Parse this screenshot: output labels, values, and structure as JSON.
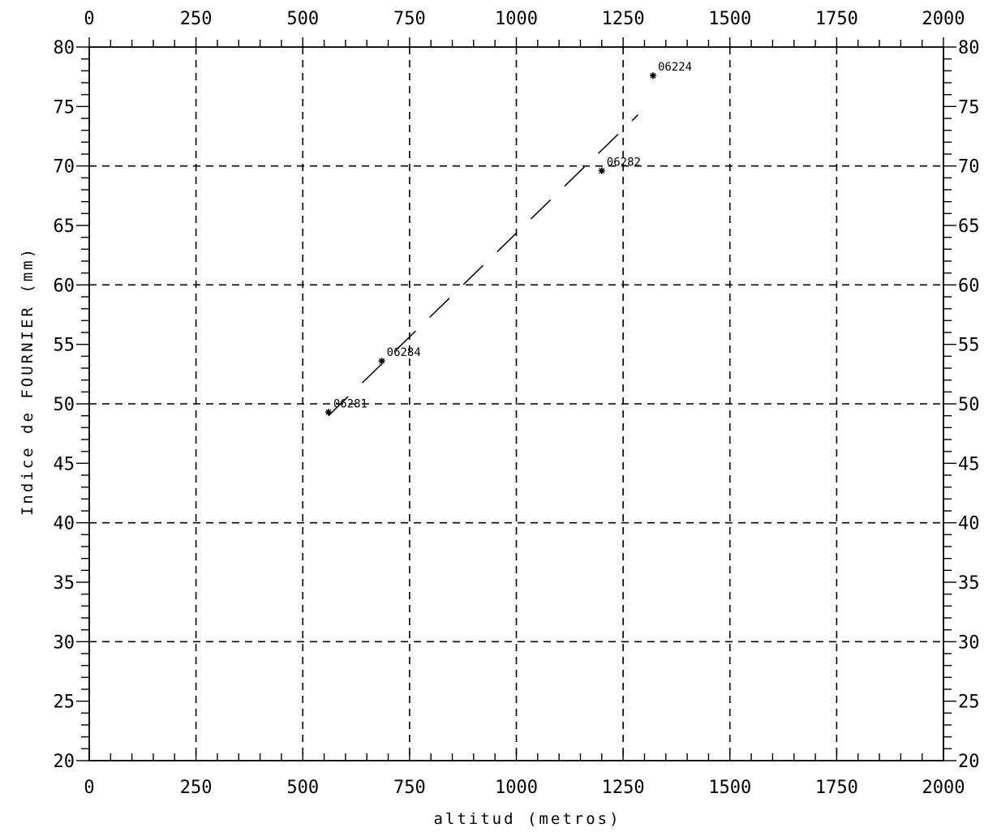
{
  "chart_data": {
    "type": "scatter",
    "title": "",
    "xlabel": "altitud (metros)",
    "ylabel": "Indice de FOURNIER (mm)",
    "xlim": [
      0,
      2000
    ],
    "ylim": [
      20,
      80
    ],
    "x_ticks": [
      "0",
      "250",
      "500",
      "750",
      "1000",
      "1250",
      "1500",
      "1750",
      "2000"
    ],
    "y_ticks": [
      "20",
      "25",
      "30",
      "35",
      "40",
      "45",
      "50",
      "55",
      "60",
      "65",
      "70",
      "75",
      "80"
    ],
    "grid": true,
    "grid_style": "dashed",
    "points": [
      {
        "label": "06281",
        "x": 560,
        "y": 49.3
      },
      {
        "label": "06284",
        "x": 685,
        "y": 53.6
      },
      {
        "label": "06282",
        "x": 1200,
        "y": 69.6
      },
      {
        "label": "06224",
        "x": 1320,
        "y": 77.6
      }
    ],
    "trend_line": {
      "style": "dashed",
      "x": [
        560,
        1285
      ],
      "y": [
        49.0,
        74.3
      ]
    }
  }
}
